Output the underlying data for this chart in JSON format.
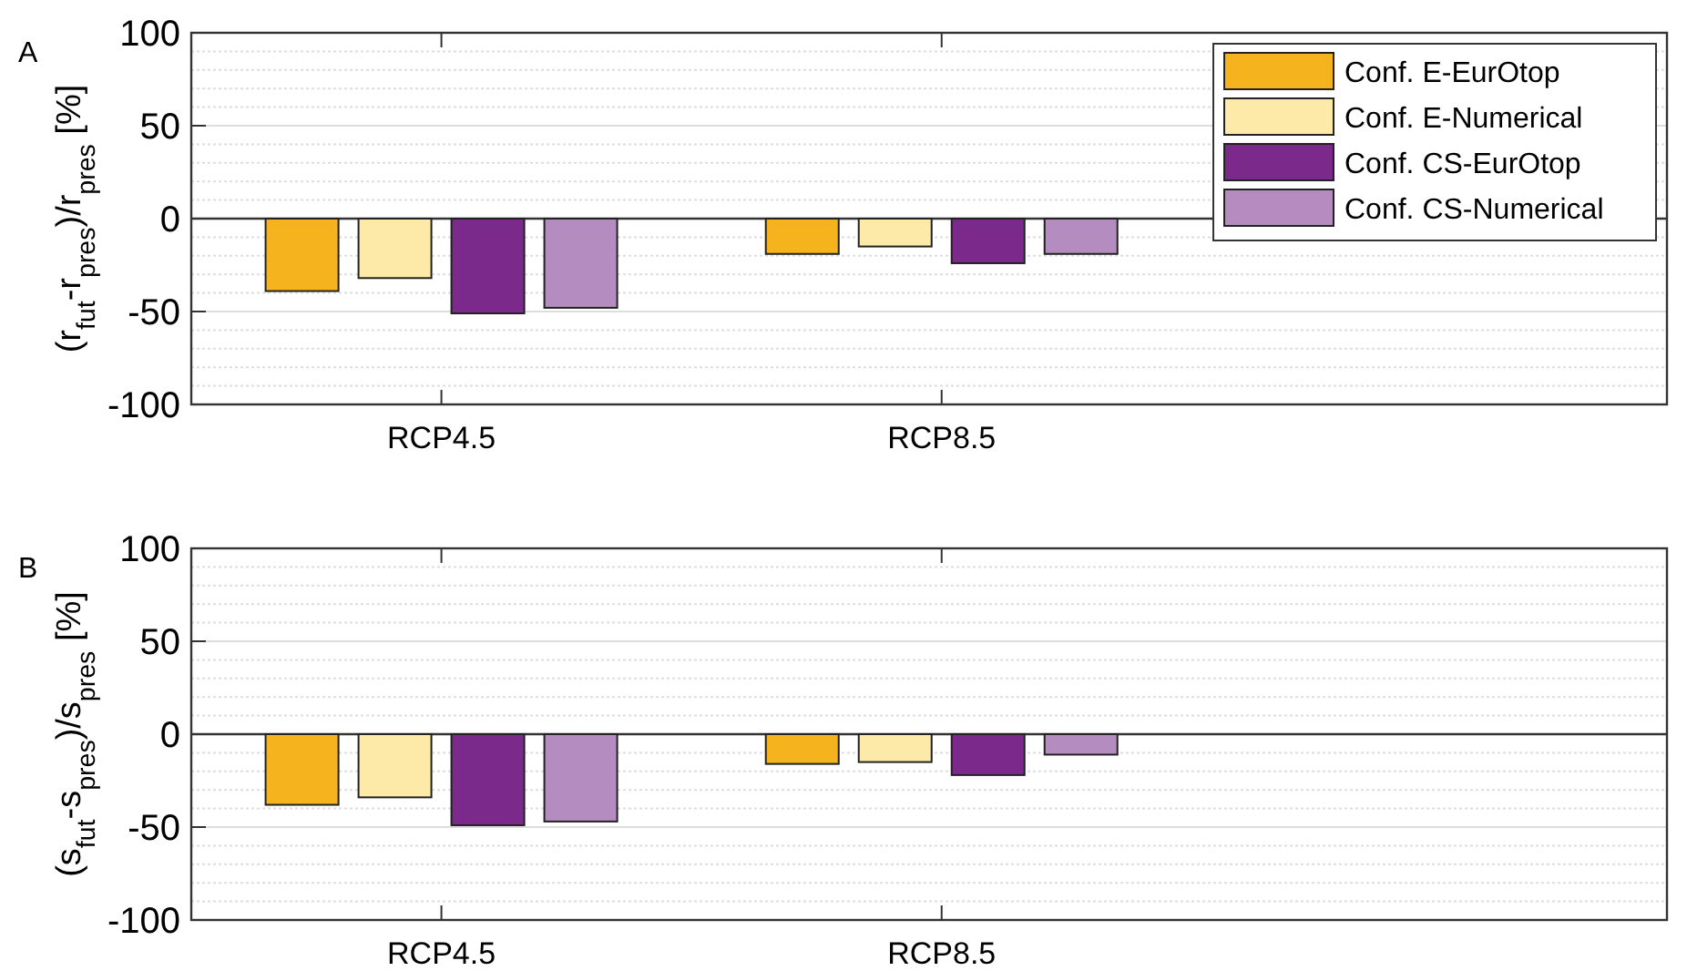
{
  "chart_data": [
    {
      "type": "bar",
      "title": "A",
      "ylabel": "(r$_{fut}$-r$_{pres}$)/r$_{pres}$ [%]",
      "categories": [
        "RCP4.5",
        "RCP8.5",
        null
      ],
      "series": [
        {
          "name": "Conf. E-EurOtop",
          "color": "#f5b31e",
          "values": [
            -39,
            -19,
            null
          ]
        },
        {
          "name": "Conf. E-Numerical",
          "color": "#fde9a8",
          "values": [
            -32,
            -15,
            null
          ]
        },
        {
          "name": "Conf. CS-EurOtop",
          "color": "#7b2a8c",
          "values": [
            -51,
            -24,
            null
          ]
        },
        {
          "name": "Conf. CS-Numerical",
          "color": "#b48cbf",
          "values": [
            -48,
            -19,
            null
          ]
        }
      ],
      "ylim": [
        -100,
        100
      ],
      "yticks": [
        -100,
        {
          "value": -90,
          "label": null
        },
        {
          "value": -80,
          "label": null
        },
        {
          "value": -70,
          "label": null
        },
        {
          "value": -60,
          "label": null
        },
        -50,
        {
          "value": -40,
          "label": null
        },
        {
          "value": -30,
          "label": null
        },
        {
          "value": -20,
          "label": null
        },
        {
          "value": -10,
          "label": null
        },
        0,
        {
          "value": 10,
          "label": null
        },
        {
          "value": 20,
          "label": null
        },
        {
          "value": 30,
          "label": null
        },
        {
          "value": 40,
          "label": null
        },
        50,
        {
          "value": 60,
          "label": null
        },
        {
          "value": 70,
          "label": null
        },
        {
          "value": 80,
          "label": null
        },
        {
          "value": 90,
          "label": null
        },
        100
      ],
      "grid": "y",
      "legend": "top right"
    },
    {
      "type": "bar",
      "title": "B",
      "ylabel": "(s$_{fut}$-s$_{pres}$)/s$_{pres}$ [%]",
      "categories": [
        "RCP4.5",
        "RCP8.5",
        null
      ],
      "series": [
        {
          "color": "#f5b31e",
          "values": [
            -38,
            -16,
            null
          ]
        },
        {
          "color": "#fde9a8",
          "values": [
            -34,
            -15,
            null
          ]
        },
        {
          "color": "#7b2a8c",
          "values": [
            -49,
            -22,
            null
          ]
        },
        {
          "color": "#b48cbf",
          "values": [
            -47,
            -11,
            null
          ]
        }
      ],
      "ylim": [
        -100,
        100
      ],
      "yticks": [
        -100,
        {
          "value": -90,
          "label": null
        },
        {
          "value": -80,
          "label": null
        },
        {
          "value": -70,
          "label": null
        },
        {
          "value": -60,
          "label": null
        },
        -50,
        {
          "value": -40,
          "label": null
        },
        {
          "value": -30,
          "label": null
        },
        {
          "value": -20,
          "label": null
        },
        {
          "value": -10,
          "label": null
        },
        0,
        {
          "value": 10,
          "label": null
        },
        {
          "value": 20,
          "label": null
        },
        {
          "value": 30,
          "label": null
        },
        {
          "value": 40,
          "label": null
        },
        50,
        {
          "value": 60,
          "label": null
        },
        {
          "value": 70,
          "label": null
        },
        {
          "value": 80,
          "label": null
        },
        {
          "value": 90,
          "label": null
        },
        100
      ],
      "grid": "y",
      "legend": false
    }
  ]
}
